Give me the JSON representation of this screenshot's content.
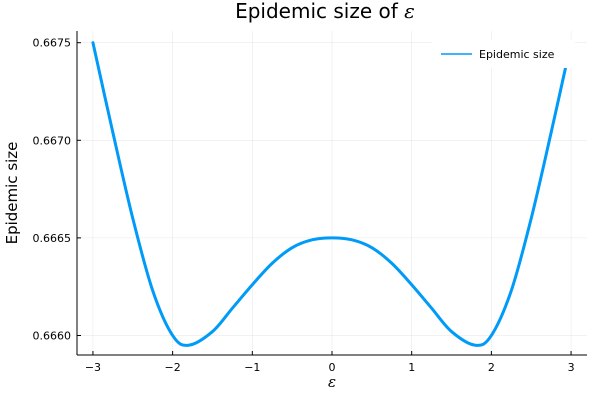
{
  "chart_data": {
    "type": "line",
    "title": "Epidemic size of ε",
    "title_prefix": "Epidemic size of ",
    "title_symbol": "ε",
    "xlabel": "ε",
    "ylabel": "Epidemic size",
    "xlim": [
      -3.2,
      3.2
    ],
    "ylim": [
      0.6659,
      0.66756
    ],
    "xticks": [
      -3,
      -2,
      -1,
      0,
      1,
      2,
      3
    ],
    "xtick_labels": [
      "−3",
      "−2",
      "−1",
      "0",
      "1",
      "2",
      "3"
    ],
    "yticks": [
      0.666,
      0.6665,
      0.667,
      0.6675
    ],
    "ytick_labels": [
      "0.6660",
      "0.6665",
      "0.6670",
      "0.6675"
    ],
    "grid": true,
    "legend_position": "top-right",
    "series": [
      {
        "name": "Epidemic size",
        "color": "#009af9",
        "x": [
          -3.0,
          -2.75,
          -2.5,
          -2.25,
          -2.0,
          -1.8,
          -1.5,
          -1.25,
          -1.0,
          -0.75,
          -0.5,
          -0.25,
          0.0,
          0.25,
          0.5,
          0.75,
          1.0,
          1.25,
          1.5,
          1.8,
          2.0,
          2.25,
          2.5,
          2.75,
          3.0
        ],
        "y": [
          0.6675,
          0.66704,
          0.6666,
          0.66623,
          0.666,
          0.66595,
          0.66602,
          0.66614,
          0.66626,
          0.66637,
          0.66645,
          0.66649,
          0.6665,
          0.66649,
          0.66645,
          0.66637,
          0.66626,
          0.66614,
          0.66602,
          0.66595,
          0.666,
          0.66623,
          0.6666,
          0.66704,
          0.6675
        ]
      }
    ]
  }
}
